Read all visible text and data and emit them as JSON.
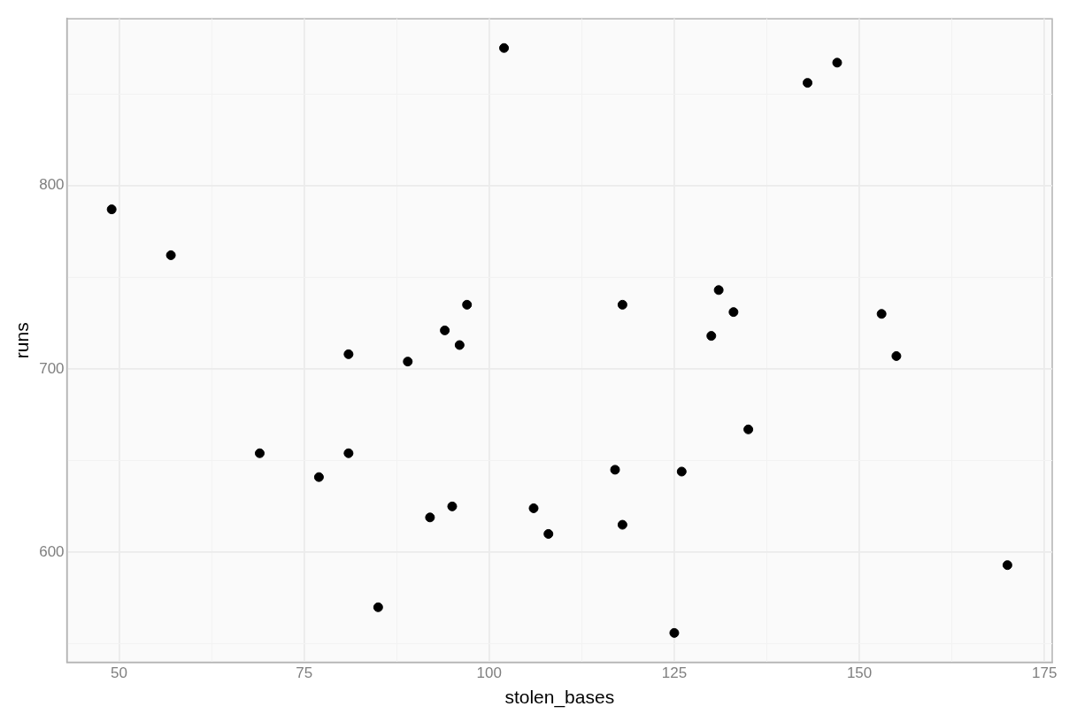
{
  "chart_data": {
    "type": "scatter",
    "xlabel": "stolen_bases",
    "ylabel": "runs",
    "x": [
      49,
      57,
      69,
      77,
      81,
      81,
      85,
      89,
      92,
      94,
      95,
      96,
      97,
      102,
      106,
      108,
      117,
      118,
      118,
      125,
      126,
      130,
      131,
      133,
      135,
      143,
      147,
      153,
      155,
      170
    ],
    "series": [
      {
        "color": "#000000",
        "values": [
          787,
          762,
          654,
          641,
          654,
          708,
          570,
          704,
          619,
          721,
          625,
          713,
          735,
          875,
          624,
          610,
          645,
          735,
          615,
          556,
          644,
          718,
          743,
          731,
          667,
          856,
          867,
          730,
          707,
          593
        ]
      }
    ],
    "xlim": [
      42.95,
      176.05
    ],
    "xticks": [
      50,
      {
        "value": 62.5,
        "label": null
      },
      75,
      {
        "value": 87.5,
        "label": null
      },
      100,
      {
        "value": 112.5,
        "label": null
      },
      125,
      {
        "value": 137.5,
        "label": null
      },
      150,
      {
        "value": 162.5,
        "label": null
      },
      175
    ],
    "ylim": [
      540.05,
      890.95
    ],
    "yticks": [
      {
        "value": 550,
        "label": null
      },
      600,
      {
        "value": 650,
        "label": null
      },
      700,
      {
        "value": 750,
        "label": null
      },
      800,
      {
        "value": 850,
        "label": null
      }
    ],
    "grid": true,
    "legend": false,
    "marker": "circle"
  }
}
